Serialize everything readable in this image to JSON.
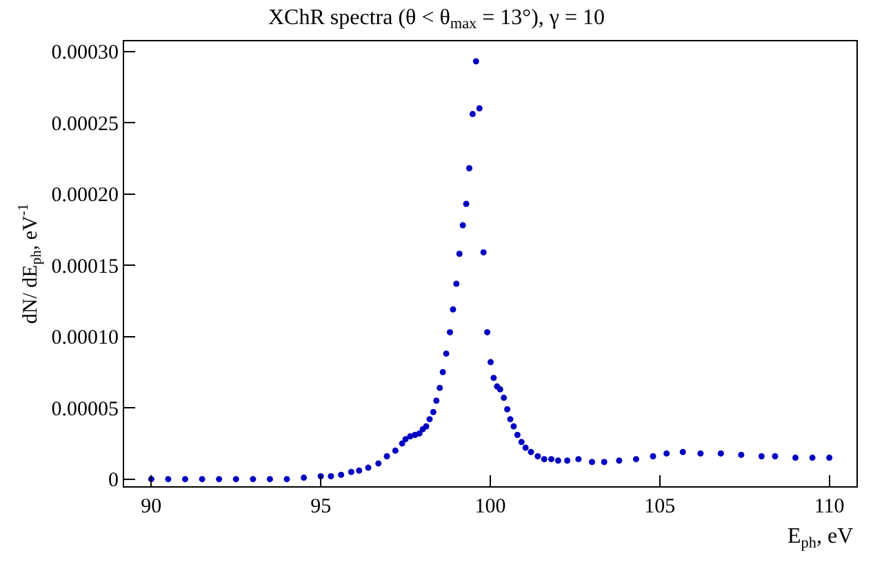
{
  "chart_data": {
    "type": "scatter",
    "title": "XChR spectra (θ < θ$_{max}$ = 13°), γ = 10",
    "xlabel": "E$_{ph}$, eV",
    "ylabel": "dN/ dE$_{ph}$, eV$^{-1}$",
    "marker": "circle",
    "xlim": [
      89.2,
      110.8
    ],
    "xticks": [
      90,
      95,
      100,
      105,
      110
    ],
    "ylim": [
      -5e-06,
      0.000307
    ],
    "yticks": [
      {
        "value": 0,
        "label": "0"
      },
      {
        "value": 5e-05,
        "label": "0.00005"
      },
      {
        "value": 0.0001,
        "label": "0.00010"
      },
      {
        "value": 0.00015,
        "label": "0.00015"
      },
      {
        "value": 0.0002,
        "label": "0.00020"
      },
      {
        "value": 0.00025,
        "label": "0.00025"
      },
      {
        "value": 0.0003,
        "label": "0.00030"
      }
    ],
    "series": [
      {
        "color": "#0000c0",
        "x": [
          90,
          90.5,
          91,
          91.5,
          92,
          92.5,
          93,
          93.5,
          94,
          94.5,
          95,
          95.3,
          95.6,
          95.9,
          96.13,
          96.4,
          96.7,
          96.95,
          97.2,
          97.4,
          97.5,
          97.64,
          97.78,
          97.91,
          98.01,
          98.11,
          98.21,
          98.32,
          98.41,
          98.51,
          98.6,
          98.7,
          98.81,
          98.9,
          99.0,
          99.09,
          99.19,
          99.29,
          99.38,
          99.48,
          99.58,
          99.68,
          99.8,
          99.91,
          100.01,
          100.1,
          100.2,
          100.29,
          100.4,
          100.5,
          100.59,
          100.69,
          100.8,
          100.92,
          101.04,
          101.2,
          101.4,
          101.59,
          101.8,
          102.0,
          102.27,
          102.6,
          103.0,
          103.36,
          103.8,
          104.3,
          104.8,
          105.2,
          105.68,
          106.2,
          106.8,
          107.4,
          108.0,
          108.4,
          109.0,
          109.5,
          110.0
        ],
        "values": [
          0,
          0,
          0,
          0,
          0,
          0,
          0,
          0,
          0,
          1e-06,
          2e-06,
          2e-06,
          3e-06,
          5e-06,
          6e-06,
          8e-06,
          1.1e-05,
          1.6e-05,
          2e-05,
          2.5e-05,
          2.8e-05,
          3e-05,
          3.1e-05,
          3.2e-05,
          3.5e-05,
          3.7e-05,
          4.2e-05,
          4.7e-05,
          5.5e-05,
          6.4e-05,
          7.5e-05,
          8.8e-05,
          0.000103,
          0.000119,
          0.000137,
          0.000158,
          0.000178,
          0.000193,
          0.000218,
          0.000256,
          0.000293,
          0.00026,
          0.000159,
          0.000103,
          8.2e-05,
          7.1e-05,
          6.5e-05,
          6.3e-05,
          5.7e-05,
          4.9e-05,
          4.2e-05,
          3.7e-05,
          3.1e-05,
          2.6e-05,
          2.2e-05,
          1.9e-05,
          1.6e-05,
          1.4e-05,
          1.4e-05,
          1.3e-05,
          1.3e-05,
          1.4e-05,
          1.2e-05,
          1.2e-05,
          1.3e-05,
          1.4e-05,
          1.6e-05,
          1.8e-05,
          1.9e-05,
          1.8e-05,
          1.8e-05,
          1.7e-05,
          1.6e-05,
          1.6e-05,
          1.5e-05,
          1.5e-05,
          1.5e-05
        ]
      }
    ]
  }
}
